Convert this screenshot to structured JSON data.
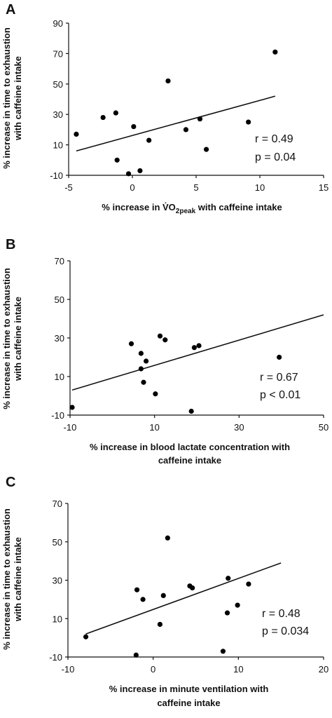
{
  "colors": {
    "marker": "#000000",
    "trendline": "#000000",
    "background": "#ffffff"
  },
  "chart_data": [
    {
      "type": "scatter",
      "panel": "A",
      "ylabel": [
        "% increase in time to exhaustion",
        "with caffeine intake"
      ],
      "xlabel": "% increase in V̇O2peak with caffeine intake",
      "xlabel_parts": {
        "pre": "% increase in ",
        "sym": "V̇O",
        "sub": "2peak",
        "post": " with caffeine intake"
      },
      "xlim": [
        -5,
        15
      ],
      "ylim": [
        -10,
        90
      ],
      "xticks": [
        -5,
        0,
        5,
        10,
        15
      ],
      "xtick_labels": [
        "-5",
        "0",
        "5",
        "10",
        "15"
      ],
      "yticks": [
        -10,
        10,
        30,
        50,
        70,
        90
      ],
      "ytick_labels": [
        "-10",
        "10",
        "30",
        "50",
        "70",
        "90"
      ],
      "points": [
        {
          "x": -4.4,
          "y": 17
        },
        {
          "x": -2.3,
          "y": 28
        },
        {
          "x": -1.3,
          "y": 31
        },
        {
          "x": -1.2,
          "y": 0
        },
        {
          "x": -0.3,
          "y": -9
        },
        {
          "x": 0.1,
          "y": 22
        },
        {
          "x": 0.6,
          "y": -7
        },
        {
          "x": 1.3,
          "y": 13
        },
        {
          "x": 2.8,
          "y": 52
        },
        {
          "x": 4.2,
          "y": 20
        },
        {
          "x": 5.3,
          "y": 27
        },
        {
          "x": 5.8,
          "y": 7
        },
        {
          "x": 9.1,
          "y": 25
        },
        {
          "x": 11.2,
          "y": 71
        }
      ],
      "trendline": {
        "x": [
          -4.4,
          11.2
        ],
        "y": [
          6,
          42
        ]
      },
      "annotation": [
        "r = 0.49",
        "p = 0.04"
      ]
    },
    {
      "type": "scatter",
      "panel": "B",
      "ylabel": [
        "% increase in time to exhaustion",
        "with caffeine intake"
      ],
      "xlabel": [
        "% increase in blood lactate concentration with",
        "caffeine intake"
      ],
      "xlim": [
        -10,
        50
      ],
      "ylim": [
        -10,
        70
      ],
      "xticks": [
        -10,
        10,
        30,
        50
      ],
      "xtick_labels": [
        "-10",
        "10",
        "30",
        "50"
      ],
      "yticks": [
        -10,
        10,
        30,
        50,
        70
      ],
      "ytick_labels": [
        "-10",
        "10",
        "30",
        "50",
        "70"
      ],
      "points": [
        {
          "x": -9.5,
          "y": -6
        },
        {
          "x": 4.5,
          "y": 27
        },
        {
          "x": 6.8,
          "y": 22
        },
        {
          "x": 6.8,
          "y": 14
        },
        {
          "x": 7.4,
          "y": 7
        },
        {
          "x": 8,
          "y": 18
        },
        {
          "x": 10.2,
          "y": 1
        },
        {
          "x": 11.3,
          "y": 31
        },
        {
          "x": 12.5,
          "y": 29
        },
        {
          "x": 18.7,
          "y": -8
        },
        {
          "x": 19.4,
          "y": 25
        },
        {
          "x": 20.5,
          "y": 26
        },
        {
          "x": 39.5,
          "y": 20
        }
      ],
      "trendline": {
        "x": [
          -9.5,
          50
        ],
        "y": [
          3,
          42
        ]
      },
      "annotation": [
        "r = 0.67",
        "p < 0.01"
      ]
    },
    {
      "type": "scatter",
      "panel": "C",
      "ylabel": [
        "% increase in time to exhaustion",
        "with caffeine intake"
      ],
      "xlabel": [
        "% increase in minute ventilation with",
        "caffeine intake"
      ],
      "xlim": [
        -10,
        20
      ],
      "ylim": [
        -10,
        70
      ],
      "xticks": [
        -10,
        0,
        10,
        20
      ],
      "xtick_labels": [
        "-10",
        "0",
        "10",
        "20"
      ],
      "yticks": [
        -10,
        10,
        30,
        50,
        70
      ],
      "ytick_labels": [
        "-10",
        "10",
        "30",
        "50",
        "70"
      ],
      "points": [
        {
          "x": -7.9,
          "y": 0.5
        },
        {
          "x": -2,
          "y": -9
        },
        {
          "x": -1.9,
          "y": 25
        },
        {
          "x": -1.2,
          "y": 20
        },
        {
          "x": 0.8,
          "y": 7
        },
        {
          "x": 1.2,
          "y": 22
        },
        {
          "x": 1.7,
          "y": 52
        },
        {
          "x": 4.3,
          "y": 27
        },
        {
          "x": 4.6,
          "y": 26
        },
        {
          "x": 8.2,
          "y": -7
        },
        {
          "x": 8.7,
          "y": 13
        },
        {
          "x": 8.8,
          "y": 31
        },
        {
          "x": 9.9,
          "y": 17
        },
        {
          "x": 11.2,
          "y": 28
        }
      ],
      "trendline": {
        "x": [
          -7.9,
          15
        ],
        "y": [
          2,
          39
        ]
      },
      "annotation": [
        "r = 0.48",
        "p = 0.034"
      ]
    }
  ]
}
